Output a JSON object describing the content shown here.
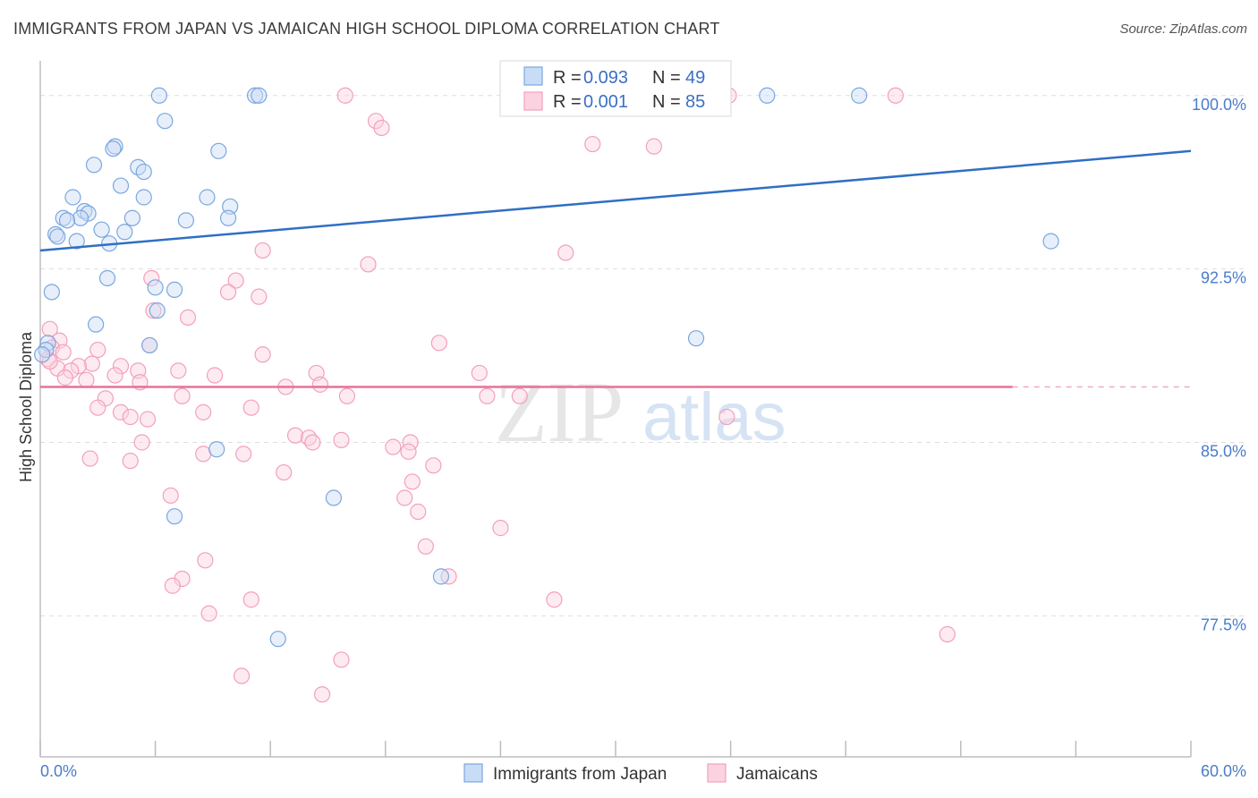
{
  "title": "IMMIGRANTS FROM JAPAN VS JAMAICAN HIGH SCHOOL DIPLOMA CORRELATION CHART",
  "source": "Source: ZipAtlas.com",
  "chart_data": {
    "type": "scatter",
    "ylabel": "High School Diploma",
    "xlim": [
      0,
      60
    ],
    "ylim": [
      71.4,
      101.5
    ],
    "x_tick_labels": [
      "0.0%",
      "60.0%"
    ],
    "y_ticks": [
      77.5,
      85.0,
      92.5,
      100.0
    ],
    "y_tick_labels": [
      "77.5%",
      "85.0%",
      "92.5%",
      "100.0%"
    ],
    "watermark": [
      "ZIP",
      "atlas"
    ],
    "colors": {
      "japan": "#7aa7e0",
      "jamaica": "#f2a0bb",
      "japan_line": "#2f6fc4",
      "jamaica_line": "#e8709a"
    },
    "legend": {
      "rows": [
        {
          "r_label": "R =",
          "r_value": "0.093",
          "n_label": "N =",
          "n_value": "49"
        },
        {
          "r_label": "R =",
          "r_value": "0.001",
          "n_label": "N =",
          "n_value": "85"
        }
      ]
    },
    "series": [
      {
        "name": "Immigrants from Japan",
        "trend": {
          "x": [
            0,
            60
          ],
          "y": [
            93.3,
            97.6
          ]
        },
        "points": [
          [
            6.2,
            100
          ],
          [
            11.2,
            100
          ],
          [
            11.4,
            100
          ],
          [
            37.9,
            100
          ],
          [
            42.7,
            100
          ],
          [
            28.9,
            100
          ],
          [
            6.5,
            98.9
          ],
          [
            3.9,
            97.8
          ],
          [
            3.8,
            97.7
          ],
          [
            9.3,
            97.6
          ],
          [
            2.8,
            97.0
          ],
          [
            5.1,
            96.9
          ],
          [
            5.4,
            96.7
          ],
          [
            4.2,
            96.1
          ],
          [
            1.7,
            95.6
          ],
          [
            5.4,
            95.6
          ],
          [
            8.7,
            95.6
          ],
          [
            9.9,
            95.2
          ],
          [
            2.3,
            95.0
          ],
          [
            2.5,
            94.9
          ],
          [
            1.2,
            94.7
          ],
          [
            4.8,
            94.7
          ],
          [
            2.1,
            94.7
          ],
          [
            1.4,
            94.6
          ],
          [
            7.6,
            94.6
          ],
          [
            9.8,
            94.7
          ],
          [
            3.2,
            94.2
          ],
          [
            4.4,
            94.1
          ],
          [
            0.8,
            94.0
          ],
          [
            0.9,
            93.9
          ],
          [
            1.9,
            93.7
          ],
          [
            3.6,
            93.6
          ],
          [
            52.7,
            93.7
          ],
          [
            3.5,
            92.1
          ],
          [
            6.0,
            91.7
          ],
          [
            7.0,
            91.6
          ],
          [
            0.6,
            91.5
          ],
          [
            6.1,
            90.7
          ],
          [
            2.9,
            90.1
          ],
          [
            34.2,
            89.5
          ],
          [
            0.4,
            89.3
          ],
          [
            5.7,
            89.2
          ],
          [
            0.3,
            89.0
          ],
          [
            9.2,
            84.7
          ],
          [
            15.3,
            82.6
          ],
          [
            7.0,
            81.8
          ],
          [
            20.9,
            79.2
          ],
          [
            12.4,
            76.5
          ],
          [
            0.1,
            88.8
          ]
        ]
      },
      {
        "name": "Jamaicans",
        "trend": {
          "x": [
            0,
            50.7
          ],
          "y": [
            87.4,
            87.4
          ]
        },
        "trend_dash": {
          "x": [
            50.7,
            60
          ],
          "y": [
            87.4,
            87.4
          ]
        },
        "points": [
          [
            15.9,
            100
          ],
          [
            35.9,
            100
          ],
          [
            44.6,
            100
          ],
          [
            17.5,
            98.9
          ],
          [
            17.8,
            98.6
          ],
          [
            28.8,
            97.9
          ],
          [
            32.0,
            97.8
          ],
          [
            11.6,
            93.3
          ],
          [
            27.4,
            93.2
          ],
          [
            17.1,
            92.7
          ],
          [
            5.8,
            92.1
          ],
          [
            10.2,
            92.0
          ],
          [
            9.8,
            91.5
          ],
          [
            11.4,
            91.3
          ],
          [
            5.9,
            90.7
          ],
          [
            7.7,
            90.4
          ],
          [
            0.5,
            89.9
          ],
          [
            1.0,
            89.4
          ],
          [
            20.8,
            89.3
          ],
          [
            5.7,
            89.2
          ],
          [
            0.6,
            89.1
          ],
          [
            3.0,
            89.0
          ],
          [
            1.2,
            88.9
          ],
          [
            11.6,
            88.8
          ],
          [
            0.4,
            88.6
          ],
          [
            2.7,
            88.4
          ],
          [
            2.0,
            88.3
          ],
          [
            0.9,
            88.2
          ],
          [
            4.2,
            88.3
          ],
          [
            1.6,
            88.1
          ],
          [
            5.1,
            88.1
          ],
          [
            7.2,
            88.1
          ],
          [
            9.1,
            87.9
          ],
          [
            3.9,
            87.9
          ],
          [
            14.4,
            88.0
          ],
          [
            22.9,
            88.0
          ],
          [
            1.3,
            87.8
          ],
          [
            2.4,
            87.7
          ],
          [
            5.2,
            87.6
          ],
          [
            14.6,
            87.5
          ],
          [
            12.8,
            87.4
          ],
          [
            23.3,
            87.0
          ],
          [
            7.4,
            87.0
          ],
          [
            16.0,
            87.0
          ],
          [
            3.4,
            86.9
          ],
          [
            4.2,
            86.3
          ],
          [
            11.0,
            86.5
          ],
          [
            25.0,
            87.0
          ],
          [
            3.0,
            86.5
          ],
          [
            8.5,
            86.3
          ],
          [
            4.7,
            86.1
          ],
          [
            13.3,
            85.3
          ],
          [
            14.0,
            85.2
          ],
          [
            15.7,
            85.1
          ],
          [
            5.3,
            85.0
          ],
          [
            14.2,
            85.0
          ],
          [
            19.3,
            85.0
          ],
          [
            18.4,
            84.8
          ],
          [
            19.2,
            84.6
          ],
          [
            10.6,
            84.5
          ],
          [
            8.5,
            84.5
          ],
          [
            2.6,
            84.3
          ],
          [
            4.7,
            84.2
          ],
          [
            20.5,
            84.0
          ],
          [
            12.7,
            83.7
          ],
          [
            19.4,
            83.3
          ],
          [
            6.8,
            82.7
          ],
          [
            19.0,
            82.6
          ],
          [
            19.7,
            82.0
          ],
          [
            24.0,
            81.3
          ],
          [
            20.1,
            80.5
          ],
          [
            8.6,
            79.9
          ],
          [
            21.3,
            79.2
          ],
          [
            7.4,
            79.1
          ],
          [
            6.9,
            78.8
          ],
          [
            26.8,
            78.2
          ],
          [
            11.0,
            78.2
          ],
          [
            8.8,
            77.6
          ],
          [
            47.3,
            76.7
          ],
          [
            15.7,
            75.6
          ],
          [
            10.5,
            74.9
          ],
          [
            14.7,
            74.1
          ],
          [
            35.8,
            86.1
          ],
          [
            5.6,
            86.0
          ],
          [
            0.5,
            88.5
          ]
        ]
      }
    ]
  }
}
